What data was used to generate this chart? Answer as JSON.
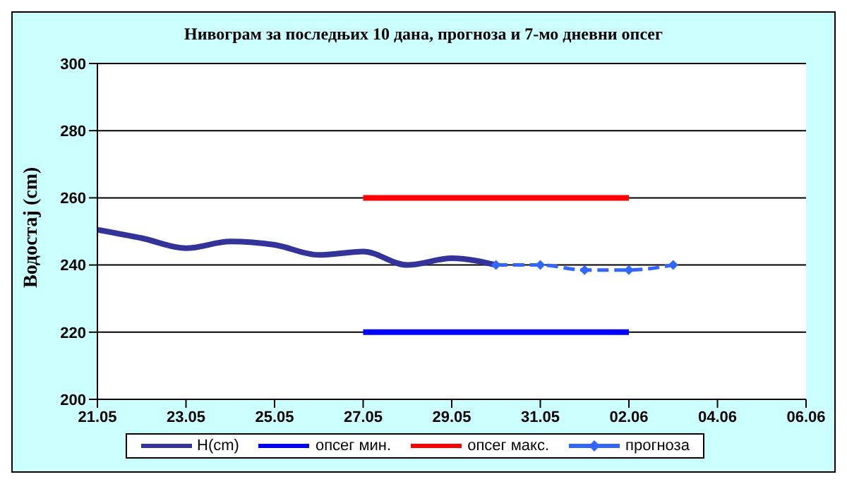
{
  "chart_data": {
    "type": "line",
    "title": "Нивограм за последњих 10 дана, прогноза и 7-мо дневни опсег",
    "ylabel": "Водостај (cm)",
    "xlim": [
      "--05-21",
      "--06-06"
    ],
    "xticks": [
      {
        "value": "--05-21",
        "label": "21.05"
      },
      {
        "value": "--05-23",
        "label": "23.05"
      },
      {
        "value": "--05-25",
        "label": "25.05"
      },
      {
        "value": "--05-27",
        "label": "27.05"
      },
      {
        "value": "--05-29",
        "label": "29.05"
      },
      {
        "value": "--05-31",
        "label": "31.05"
      },
      {
        "value": "--06-02",
        "label": "02.06"
      },
      {
        "value": "--06-04",
        "label": "04.06"
      },
      {
        "value": "--06-06",
        "label": "06.06"
      }
    ],
    "ylim": [
      200,
      300
    ],
    "yticks": [
      200,
      220,
      240,
      260,
      280,
      300
    ],
    "grid": "y",
    "legend": "bottom",
    "marker": "none",
    "line_style": "solid",
    "series": [
      {
        "name": "H(cm)",
        "color": "#333399",
        "x": [
          "--05-21",
          "--05-22",
          "--05-23",
          "--05-24",
          "--05-25",
          "--05-26",
          "--05-27",
          "--05-28",
          "--05-29",
          "--05-30"
        ],
        "values": [
          250.5,
          248,
          245,
          247,
          246,
          243,
          244,
          240,
          242,
          240
        ]
      },
      {
        "name": "опсег мин.",
        "color": "#0000ff",
        "x": [
          "--05-27",
          "--06-02"
        ],
        "values": [
          220,
          220
        ]
      },
      {
        "name": "опсег макс.",
        "color": "#ff0000",
        "x": [
          "--05-27",
          "--06-02"
        ],
        "values": [
          260,
          260
        ]
      },
      {
        "name": "прогноза",
        "color": "#3366ff",
        "marker": "diamond",
        "line_style": "dashed",
        "x": [
          "--05-30",
          "--05-31",
          "--06-01",
          "--06-02",
          "--06-03"
        ],
        "values": [
          240,
          240,
          238.5,
          238.5,
          240
        ]
      }
    ]
  }
}
